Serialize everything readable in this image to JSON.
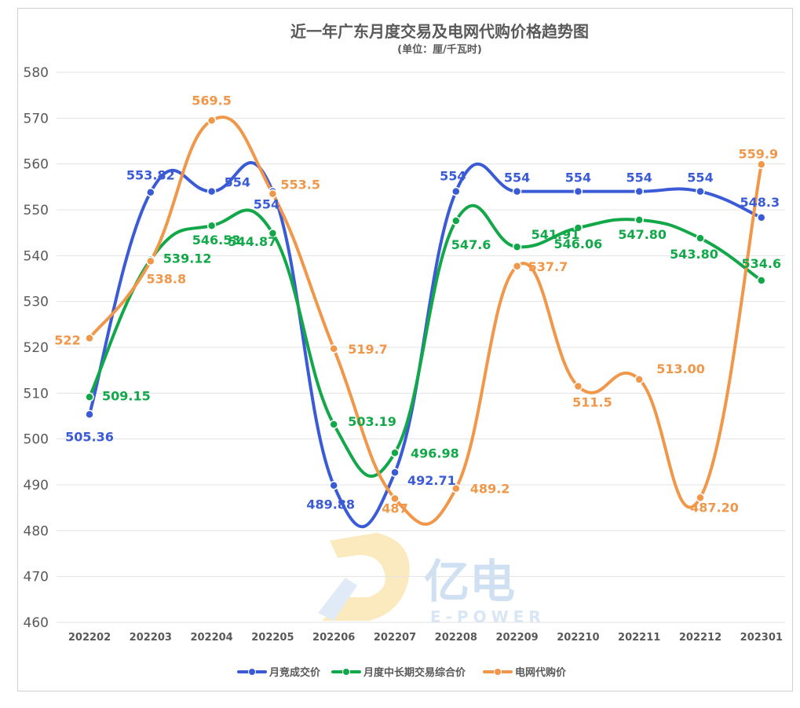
{
  "title": "近一年广东月度交易及电网代购价格趋势图",
  "subtitle": "(单位：厘/千瓦时)",
  "watermark": {
    "text": "亿电",
    "sub": "E-POWER"
  },
  "colors": {
    "series1": "#3b5bd6",
    "series2": "#12a84a",
    "series3": "#f0974a"
  },
  "chart_data": {
    "type": "line",
    "categories": [
      "202202",
      "202203",
      "202204",
      "202205",
      "202206",
      "202207",
      "202208",
      "202209",
      "202210",
      "202211",
      "202212",
      "202301"
    ],
    "ylim": [
      460,
      580
    ],
    "yticks": [
      "460",
      "470",
      "480",
      "490",
      "500",
      "510",
      "520",
      "530",
      "540",
      "550",
      "560",
      "570",
      "580"
    ],
    "grid": true,
    "legend": "bottom",
    "series": [
      {
        "name": "月竞成交价",
        "values": [
          505.36,
          553.82,
          554,
          554,
          489.88,
          492.71,
          554,
          554,
          554,
          554,
          554,
          548.3
        ],
        "labels": [
          "505.36",
          "553.82",
          "554",
          "554",
          "489.88",
          "492.71",
          "554",
          "554",
          "554",
          "554",
          "554",
          "548.3"
        ]
      },
      {
        "name": "月度中长期交易综合价",
        "values": [
          509.15,
          539.12,
          546.53,
          544.87,
          503.19,
          496.98,
          547.6,
          541.91,
          546.06,
          547.8,
          543.8,
          534.6
        ],
        "labels": [
          "509.15",
          "539.12",
          "546.53",
          "544.87",
          "503.19",
          "496.98",
          "547.6",
          "541.91",
          "546.06",
          "547.80",
          "543.80",
          "534.6"
        ]
      },
      {
        "name": "电网代购价",
        "values": [
          522,
          538.8,
          569.5,
          553.5,
          519.7,
          487,
          489.2,
          537.7,
          511.5,
          513.0,
          487.2,
          559.9
        ],
        "labels": [
          "522",
          "538.8",
          "569.5",
          "553.5",
          "519.7",
          "487",
          "489.2",
          "537.7",
          "511.5",
          "513.00",
          "487.20",
          "559.9"
        ]
      }
    ]
  }
}
